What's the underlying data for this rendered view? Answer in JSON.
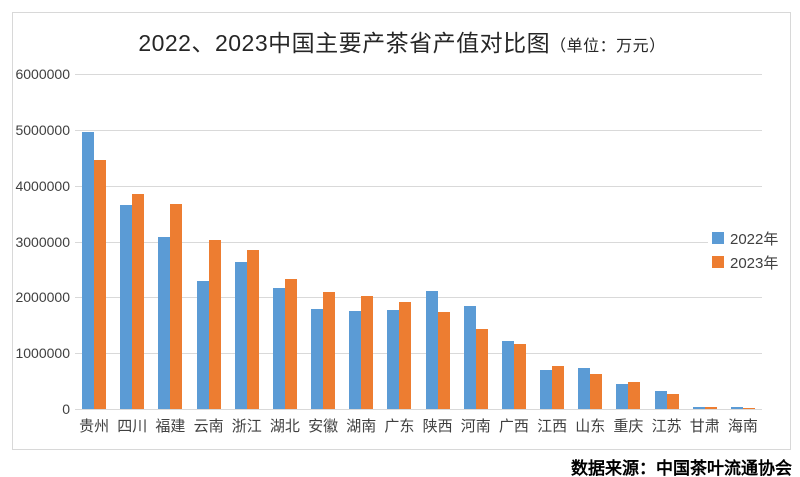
{
  "title": {
    "main": "2022、2023中国主要产茶省产值对比图",
    "unit": "（单位：万元）"
  },
  "source_note": {
    "text": "数据来源：中国茶叶流通协会"
  },
  "colors": {
    "series_2022": "#5b9bd5",
    "series_2023": "#ed7d31",
    "gridline": "#d9d9d9",
    "axis_text": "#404040",
    "frame_border": "#d8d8d8"
  },
  "chart_data": {
    "type": "bar",
    "title": "2022、2023中国主要产茶省产值对比图（单位：万元）",
    "unit": "万元",
    "categories": [
      "贵州",
      "四川",
      "福建",
      "云南",
      "浙江",
      "湖北",
      "安徽",
      "湖南",
      "广东",
      "陕西",
      "河南",
      "广西",
      "江西",
      "山东",
      "重庆",
      "江苏",
      "甘肃",
      "海南"
    ],
    "series": [
      {
        "name": "2022年",
        "color": "#5b9bd5",
        "values": [
          4970000,
          3650000,
          3080000,
          2300000,
          2640000,
          2160000,
          1800000,
          1750000,
          1770000,
          2110000,
          1850000,
          1220000,
          700000,
          730000,
          440000,
          320000,
          30000,
          30000
        ]
      },
      {
        "name": "2023年",
        "color": "#ed7d31",
        "values": [
          4460000,
          3850000,
          3680000,
          3020000,
          2850000,
          2330000,
          2090000,
          2020000,
          1910000,
          1740000,
          1430000,
          1160000,
          770000,
          620000,
          480000,
          270000,
          30000,
          25000
        ]
      }
    ],
    "ylim": [
      0,
      6000000
    ],
    "yticks": [
      0,
      1000000,
      2000000,
      3000000,
      4000000,
      5000000,
      6000000
    ],
    "grid": "horizontal",
    "legend_position": "right",
    "source": "数据来源：中国茶叶流通协会"
  }
}
